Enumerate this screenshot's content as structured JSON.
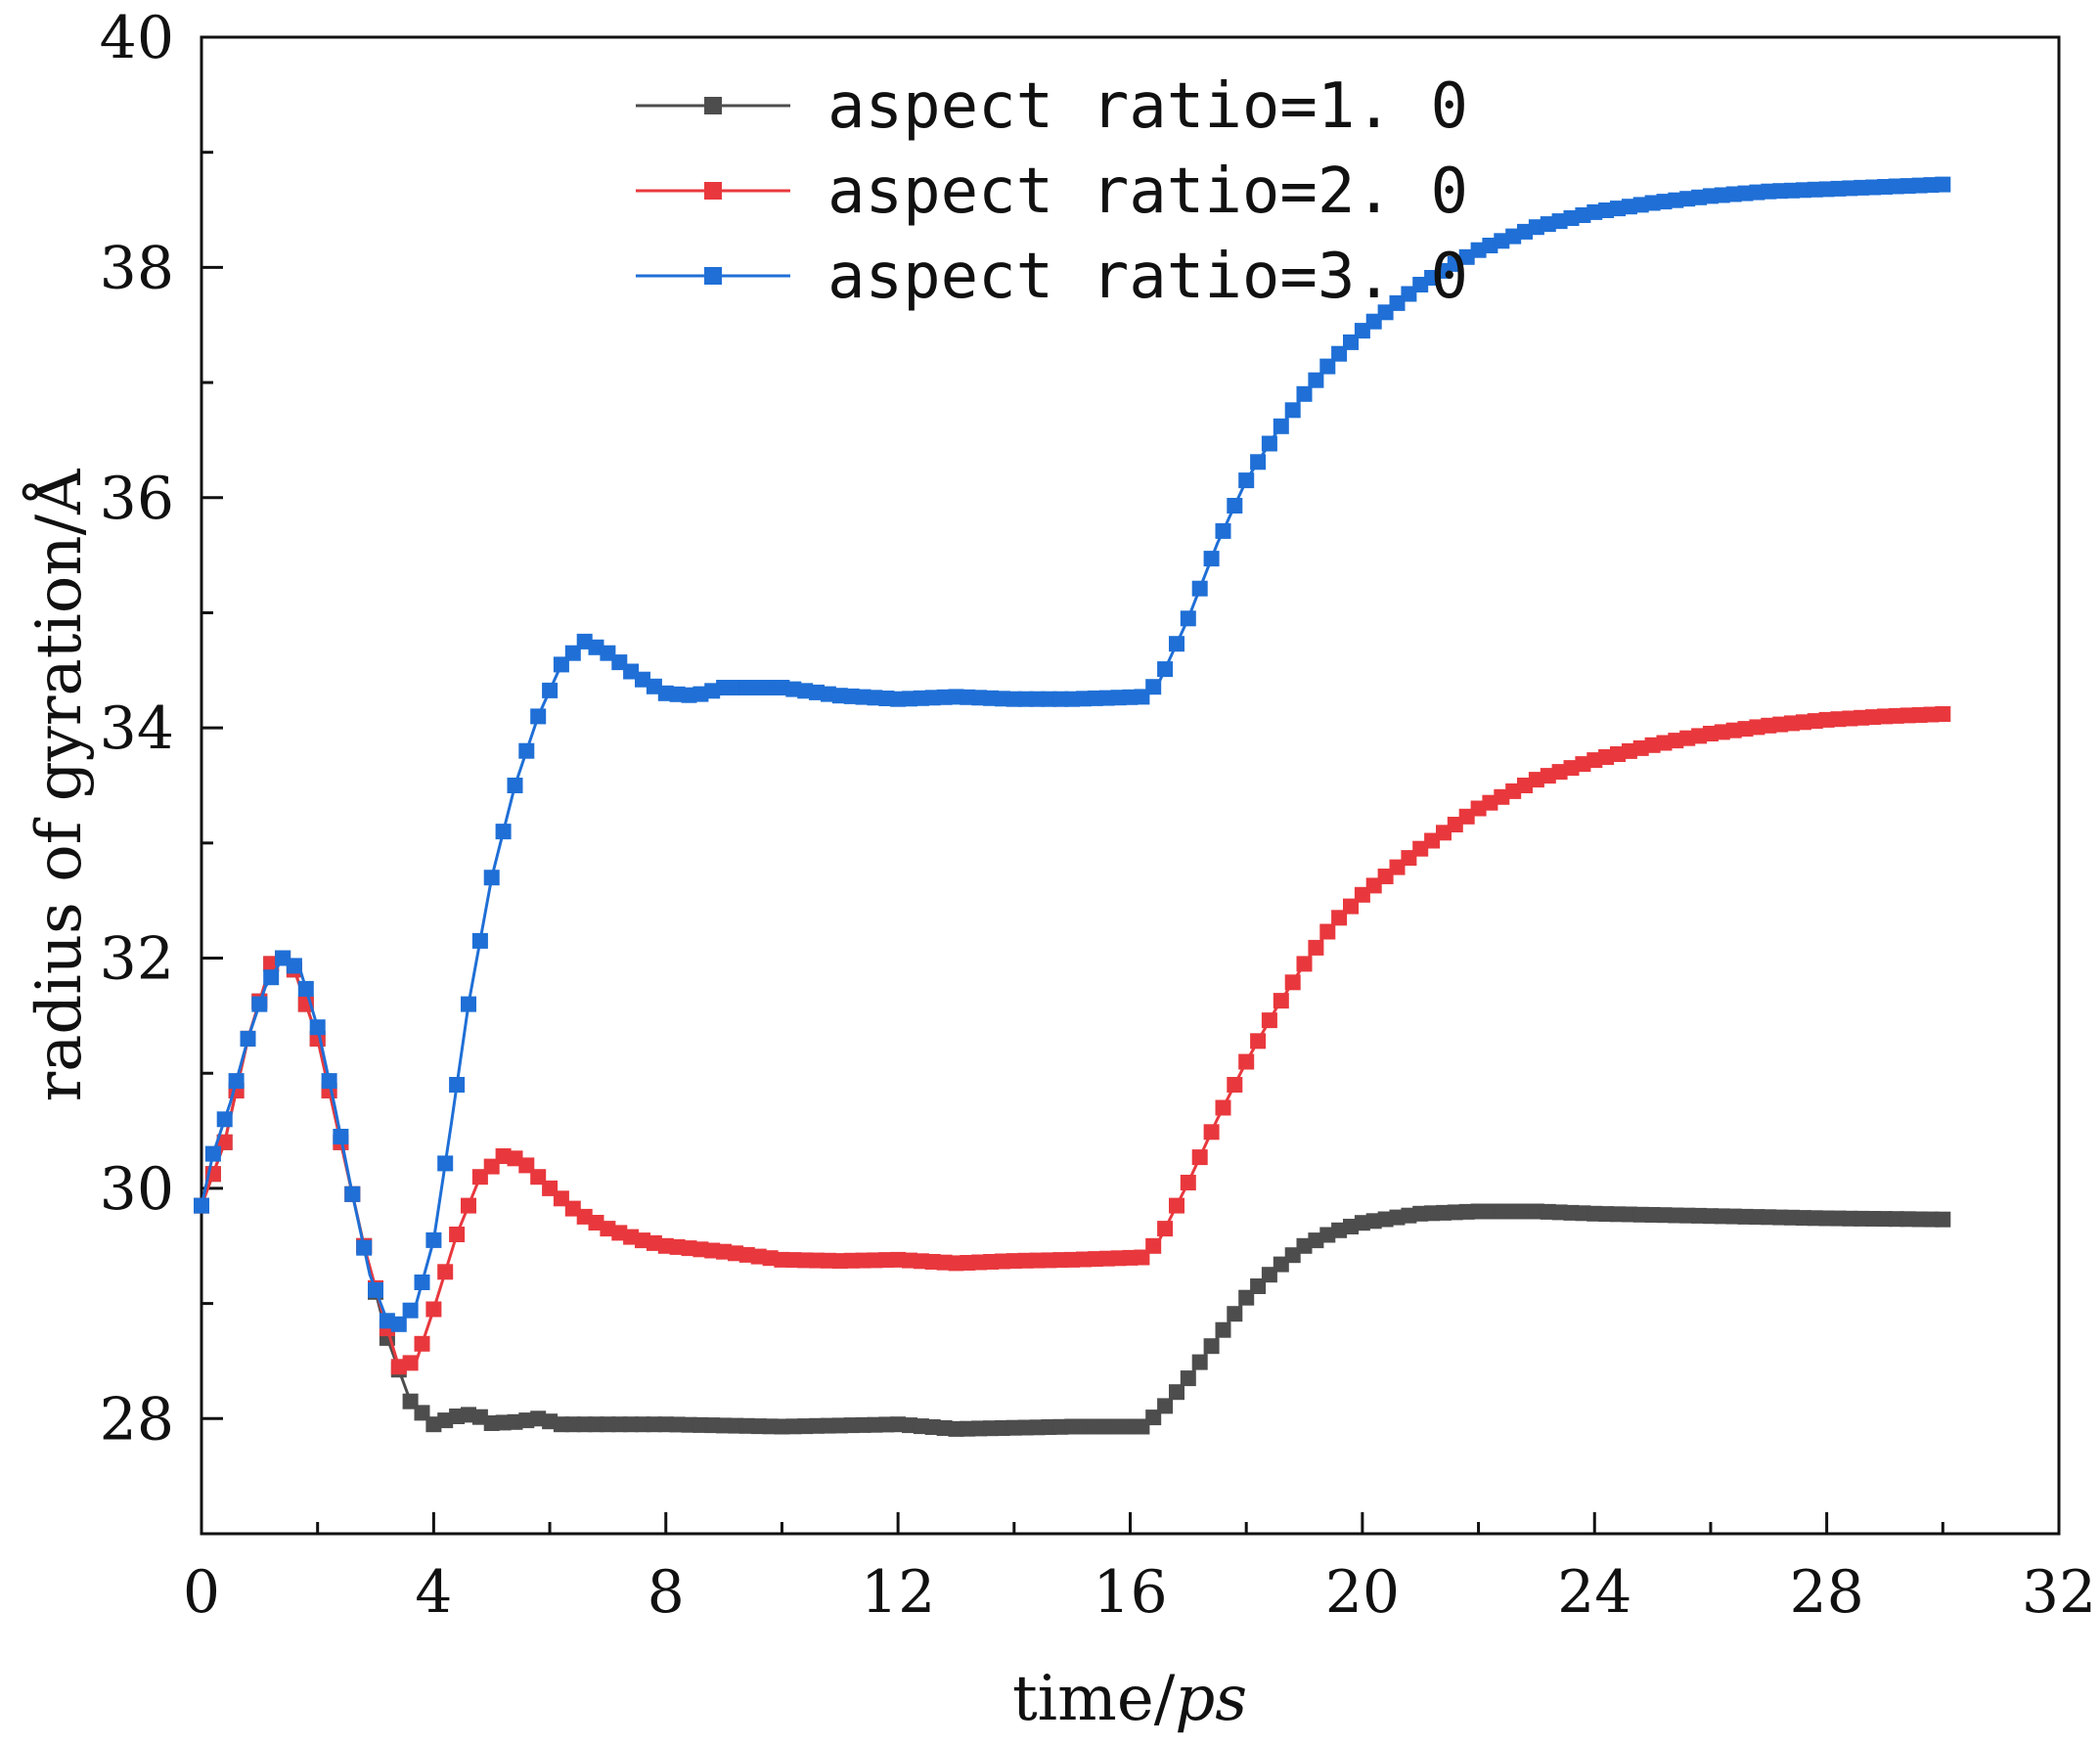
{
  "chart_data": {
    "type": "line",
    "xlabel": "time/",
    "xlabel_unit": "ps",
    "ylabel": "radius of gyration/",
    "ylabel_unit": "Å",
    "xlim": [
      0,
      32
    ],
    "ylim": [
      27,
      40
    ],
    "xticks": [
      "0",
      "4",
      "8",
      "12",
      "16",
      "20",
      "24",
      "28",
      "32"
    ],
    "yticks": [
      "28",
      "30",
      "32",
      "34",
      "36",
      "38",
      "40"
    ],
    "legend_position": "top-center",
    "series": [
      {
        "name": "aspect ratio=1.0",
        "label": "aspect ratio=1. 0",
        "color": "#4d4d4d",
        "points": [
          [
            0,
            29.85
          ],
          [
            0.4,
            30.4
          ],
          [
            0.8,
            31.3
          ],
          [
            1.2,
            31.95
          ],
          [
            1.4,
            32.0
          ],
          [
            1.6,
            31.9
          ],
          [
            2.0,
            31.3
          ],
          [
            2.4,
            30.4
          ],
          [
            2.8,
            29.5
          ],
          [
            3.2,
            28.7
          ],
          [
            3.6,
            28.15
          ],
          [
            4.0,
            27.95
          ],
          [
            4.4,
            28.02
          ],
          [
            4.7,
            28.04
          ],
          [
            5.0,
            27.96
          ],
          [
            5.4,
            27.97
          ],
          [
            5.8,
            28.0
          ],
          [
            6.2,
            27.95
          ],
          [
            8,
            27.95
          ],
          [
            10,
            27.93
          ],
          [
            12,
            27.95
          ],
          [
            13,
            27.91
          ],
          [
            14,
            27.92
          ],
          [
            15,
            27.93
          ],
          [
            16.2,
            27.93
          ],
          [
            16.5,
            28.05
          ],
          [
            17,
            28.35
          ],
          [
            17.5,
            28.7
          ],
          [
            18,
            29.05
          ],
          [
            18.5,
            29.3
          ],
          [
            19,
            29.5
          ],
          [
            19.5,
            29.62
          ],
          [
            20,
            29.7
          ],
          [
            21,
            29.78
          ],
          [
            22,
            29.8
          ],
          [
            23,
            29.8
          ],
          [
            24,
            29.78
          ],
          [
            26,
            29.76
          ],
          [
            28,
            29.74
          ],
          [
            30,
            29.73
          ]
        ]
      },
      {
        "name": "aspect ratio=2.0",
        "label": "aspect ratio=2. 0",
        "color": "#e8383d",
        "points": [
          [
            0,
            29.85
          ],
          [
            0.4,
            30.4
          ],
          [
            0.8,
            31.3
          ],
          [
            1.2,
            31.95
          ],
          [
            1.4,
            32.0
          ],
          [
            1.6,
            31.9
          ],
          [
            2.0,
            31.3
          ],
          [
            2.4,
            30.4
          ],
          [
            2.8,
            29.5
          ],
          [
            3.1,
            28.95
          ],
          [
            3.4,
            28.45
          ],
          [
            3.7,
            28.5
          ],
          [
            4.0,
            28.95
          ],
          [
            4.4,
            29.6
          ],
          [
            4.8,
            30.1
          ],
          [
            5.2,
            30.28
          ],
          [
            5.5,
            30.25
          ],
          [
            6.0,
            30.0
          ],
          [
            6.5,
            29.78
          ],
          [
            7,
            29.65
          ],
          [
            7.5,
            29.56
          ],
          [
            8,
            29.5
          ],
          [
            9,
            29.45
          ],
          [
            10,
            29.38
          ],
          [
            11,
            29.37
          ],
          [
            12,
            29.38
          ],
          [
            13,
            29.35
          ],
          [
            14,
            29.37
          ],
          [
            15,
            29.38
          ],
          [
            16.2,
            29.4
          ],
          [
            16.5,
            29.55
          ],
          [
            17,
            30.05
          ],
          [
            17.5,
            30.6
          ],
          [
            18,
            31.1
          ],
          [
            18.5,
            31.55
          ],
          [
            19,
            31.95
          ],
          [
            19.5,
            32.3
          ],
          [
            20,
            32.55
          ],
          [
            21,
            32.95
          ],
          [
            22,
            33.3
          ],
          [
            23,
            33.55
          ],
          [
            24,
            33.72
          ],
          [
            25,
            33.85
          ],
          [
            26,
            33.95
          ],
          [
            27,
            34.02
          ],
          [
            28,
            34.07
          ],
          [
            29,
            34.1
          ],
          [
            30,
            34.12
          ]
        ]
      },
      {
        "name": "aspect ratio=3.0",
        "label": "aspect ratio=3. 0",
        "color": "#1f6fd6",
        "points": [
          [
            0,
            29.85
          ],
          [
            0.2,
            30.3
          ],
          [
            0.5,
            30.75
          ],
          [
            0.8,
            31.3
          ],
          [
            1.1,
            31.75
          ],
          [
            1.4,
            32.0
          ],
          [
            1.7,
            31.9
          ],
          [
            2.0,
            31.4
          ],
          [
            2.3,
            30.7
          ],
          [
            2.6,
            29.95
          ],
          [
            2.9,
            29.25
          ],
          [
            3.2,
            28.85
          ],
          [
            3.4,
            28.82
          ],
          [
            3.7,
            29.0
          ],
          [
            4.0,
            29.55
          ],
          [
            4.3,
            30.55
          ],
          [
            4.6,
            31.6
          ],
          [
            5.0,
            32.7
          ],
          [
            5.4,
            33.5
          ],
          [
            5.8,
            34.1
          ],
          [
            6.2,
            34.55
          ],
          [
            6.6,
            34.75
          ],
          [
            7.0,
            34.65
          ],
          [
            7.5,
            34.45
          ],
          [
            8,
            34.3
          ],
          [
            8.5,
            34.28
          ],
          [
            9,
            34.35
          ],
          [
            10,
            34.35
          ],
          [
            11,
            34.28
          ],
          [
            12,
            34.25
          ],
          [
            13,
            34.27
          ],
          [
            14,
            34.25
          ],
          [
            15,
            34.25
          ],
          [
            16.2,
            34.27
          ],
          [
            16.5,
            34.4
          ],
          [
            17,
            34.95
          ],
          [
            17.5,
            35.6
          ],
          [
            18,
            36.15
          ],
          [
            18.5,
            36.55
          ],
          [
            19,
            36.9
          ],
          [
            19.5,
            37.2
          ],
          [
            20,
            37.45
          ],
          [
            21,
            37.85
          ],
          [
            22,
            38.15
          ],
          [
            23,
            38.35
          ],
          [
            24,
            38.48
          ],
          [
            25,
            38.56
          ],
          [
            26,
            38.62
          ],
          [
            27,
            38.66
          ],
          [
            28,
            38.68
          ],
          [
            29,
            38.7
          ],
          [
            30,
            38.72
          ]
        ]
      }
    ]
  }
}
